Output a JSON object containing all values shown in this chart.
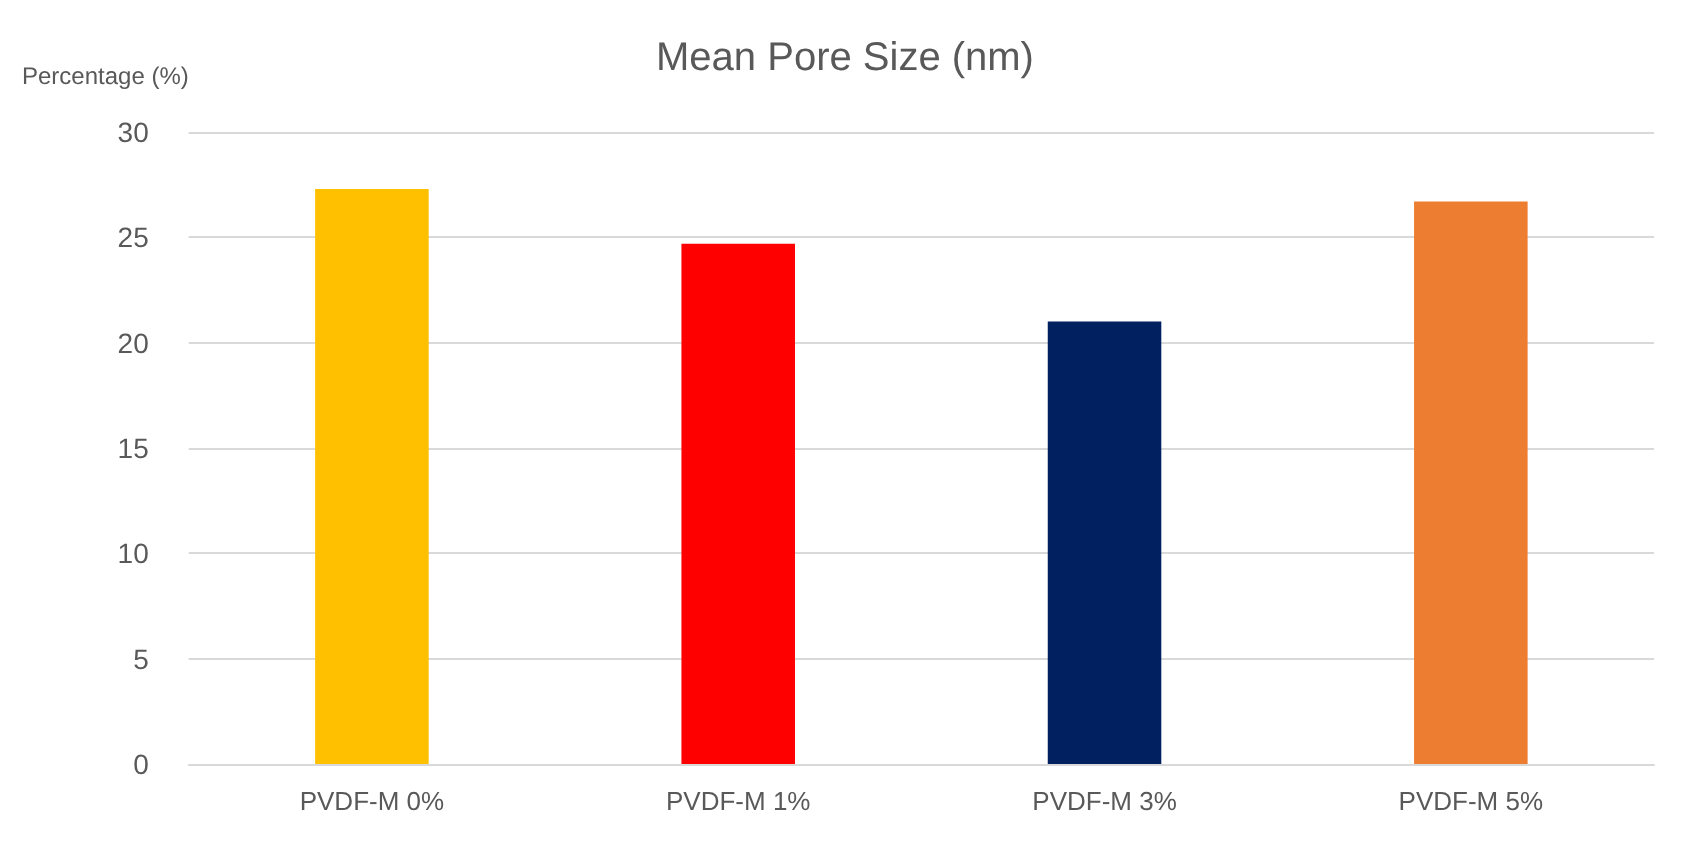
{
  "chart_data": {
    "type": "bar",
    "title": "Mean Pore Size (nm)",
    "ylabel": "Percentage (%)",
    "categories": [
      "PVDF-M 0%",
      "PVDF-M 1%",
      "PVDF-M 3%",
      "PVDF-M 5%"
    ],
    "values": [
      27.3,
      24.7,
      21.0,
      26.7
    ],
    "colors": [
      "#ffc000",
      "#ff0000",
      "#002060",
      "#ed7d31"
    ],
    "ylim": [
      0,
      30
    ],
    "yticks": [
      0,
      5,
      10,
      15,
      20,
      25,
      30
    ],
    "grid": "y"
  }
}
